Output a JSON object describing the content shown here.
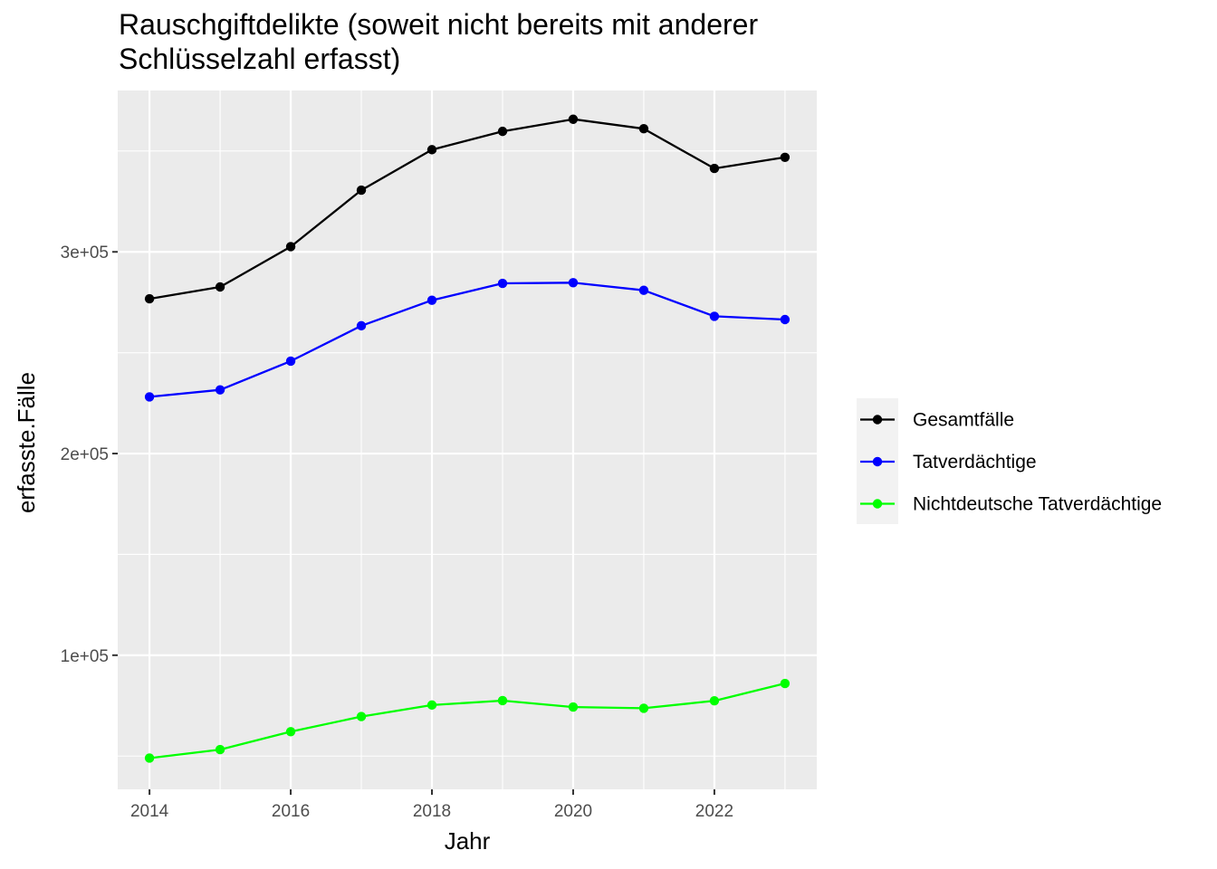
{
  "chart_data": {
    "type": "line",
    "title_lines": [
      "Rauschgiftdelikte (soweit nicht bereits mit anderer",
      "Schlüsselzahl erfasst)"
    ],
    "xlabel": "Jahr",
    "ylabel": "erfasste.Fälle",
    "x": [
      2014,
      2015,
      2016,
      2017,
      2018,
      2019,
      2020,
      2021,
      2022,
      2023
    ],
    "xticks": [
      "2014",
      "2016",
      "2018",
      "2020",
      "2022"
    ],
    "yticks": [
      {
        "value": 100000,
        "label": "1e+05"
      },
      {
        "value": 200000,
        "label": "2e+05"
      },
      {
        "value": 300000,
        "label": "3e+05"
      }
    ],
    "xlim": [
      2013.55,
      2023.45
    ],
    "ylim": [
      33500,
      380000
    ],
    "grid": true,
    "legend_position": "right",
    "background": "#ebebeb",
    "series": [
      {
        "name": "Gesamtfälle",
        "color": "#000000",
        "values": [
          276734,
          282604,
          302594,
          330580,
          350662,
          359747,
          365753,
          361048,
          341352,
          346877
        ]
      },
      {
        "name": "Tatverdächtige",
        "color": "#0000ff",
        "values": [
          228110,
          231564,
          245825,
          263360,
          276003,
          284390,
          284723,
          280934,
          268043,
          266447
        ]
      },
      {
        "name": "Nichtdeutsche Tatverdächtige",
        "color": "#00ff00",
        "values": [
          49000,
          53200,
          62100,
          69600,
          75300,
          77500,
          74300,
          73700,
          77400,
          86000
        ]
      }
    ]
  }
}
